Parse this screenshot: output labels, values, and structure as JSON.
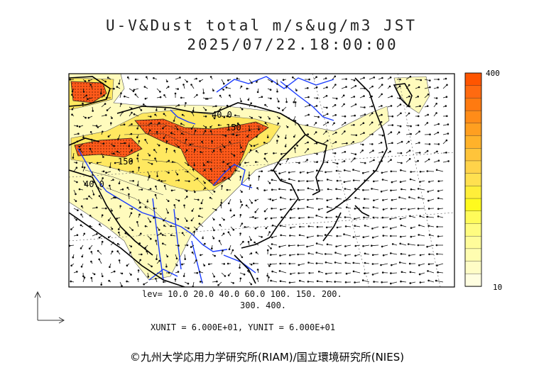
{
  "title": {
    "line1": "U-V&Dust total m/s&ug/m3 JST",
    "line2": "2025/07/22.18:00:00"
  },
  "map_labels": [
    "40.0",
    "150",
    "150",
    "40.0"
  ],
  "levels": {
    "line1": "lev= 10.0 20.0 40.0 60.0 100. 150. 200.",
    "line2": "300. 400."
  },
  "units": "XUNIT = 6.000E+01, YUNIT = 6.000E+01",
  "colorbar": {
    "max_label": "400",
    "min_label": "10",
    "colors": [
      "#ff5500",
      "#ff6a10",
      "#ff7a10",
      "#ff8c18",
      "#ff9f20",
      "#ffb22a",
      "#ffc43a",
      "#ffd34a",
      "#ffe050",
      "#ffee3a",
      "#fffa1e",
      "#fffb5a",
      "#fffc80",
      "#fffc9a",
      "#fffdb0",
      "#fffdc6",
      "#fffee0"
    ]
  },
  "copyright": "©九州大学応用力学研究所(RIAM)/国立環境研究所(NIES)",
  "colors": {
    "dust_high": "#ff5a1a",
    "dust_mid": "#ffd34a",
    "dust_low": "#fffdc0",
    "river": "#1a3cff",
    "coast": "#000000"
  }
}
